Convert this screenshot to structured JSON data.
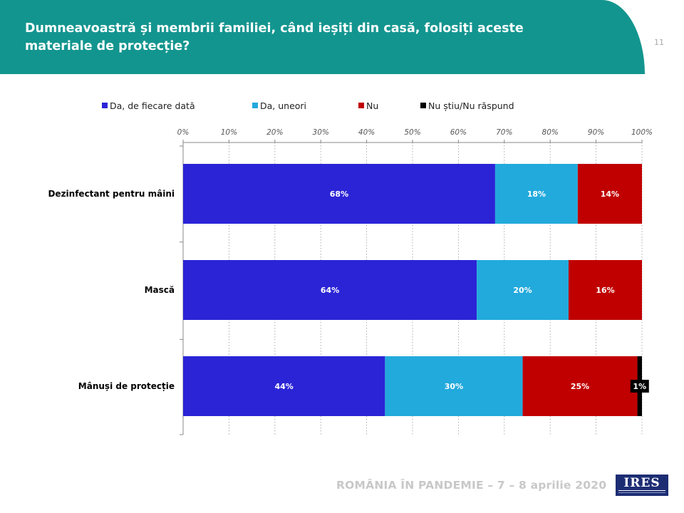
{
  "header": {
    "title": "Dumneavoastră și membrii familiei, când ieșiți din casă, folosiți aceste materiale de protecție?",
    "page_number": "11",
    "background_color": "#13958f"
  },
  "footer": {
    "text": "ROMÂNIA ÎN PANDEMIE – 7 – 8 aprilie 2020",
    "logo_text": "IRES",
    "logo_color": "#1d2d74"
  },
  "chart_data": {
    "type": "bar",
    "orientation": "horizontal",
    "stacked": true,
    "categories": [
      "Dezinfectant pentru mâini",
      "Mască",
      "Mânuși de protecție"
    ],
    "series": [
      {
        "name": "Da, de fiecare dată",
        "color": "#2b24d6",
        "values": [
          68,
          64,
          44
        ],
        "labels": [
          "68%",
          "64%",
          "44%"
        ]
      },
      {
        "name": "Da, uneori",
        "color": "#22aadc",
        "values": [
          18,
          20,
          30
        ],
        "labels": [
          "18%",
          "20%",
          "30%"
        ]
      },
      {
        "name": "Nu",
        "color": "#c00000",
        "values": [
          14,
          16,
          25
        ],
        "labels": [
          "14%",
          "16%",
          "25%"
        ]
      },
      {
        "name": "Nu știu/Nu răspund",
        "color": "#000000",
        "values": [
          0,
          0,
          1
        ],
        "labels": [
          "",
          "",
          "1%"
        ]
      }
    ],
    "x_ticks": [
      "0%",
      "10%",
      "20%",
      "30%",
      "40%",
      "50%",
      "60%",
      "70%",
      "80%",
      "90%",
      "100%"
    ],
    "xlim": [
      0,
      100
    ],
    "x_axis_position": "top",
    "gridlines": "vertical dotted",
    "legend_position": "top"
  }
}
